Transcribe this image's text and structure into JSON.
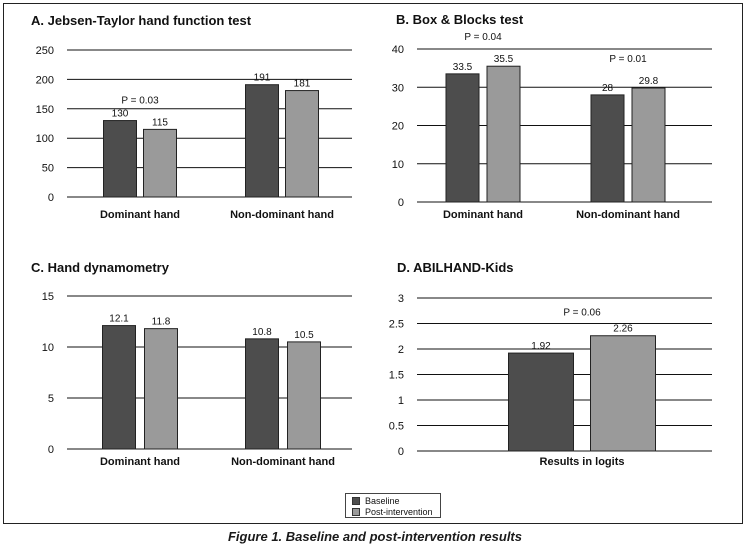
{
  "caption": "Figure 1. Baseline and post-intervention results",
  "legend": [
    {
      "label": "Baseline",
      "color": "#4d4d4d"
    },
    {
      "label": "Post-intervention",
      "color": "#9a9a9a"
    }
  ],
  "colors": {
    "baseline": "#4d4d4d",
    "post": "#9a9a9a"
  },
  "chart_data": [
    {
      "type": "bar",
      "title": "A. Jebsen-Taylor hand function test",
      "categories": [
        "Dominant hand",
        "Non-dominant hand"
      ],
      "series": [
        {
          "name": "Baseline",
          "values": [
            130,
            191
          ]
        },
        {
          "name": "Post-intervention",
          "values": [
            115,
            181
          ]
        }
      ],
      "ylim": [
        0,
        250
      ],
      "yticks": [
        0,
        50,
        100,
        150,
        200,
        250
      ],
      "grid": true,
      "annotations": [
        {
          "text": "P = 0.03",
          "category": 0
        }
      ]
    },
    {
      "type": "bar",
      "title": "B. Box & Blocks test",
      "categories": [
        "Dominant hand",
        "Non-dominant hand"
      ],
      "series": [
        {
          "name": "Baseline",
          "values": [
            33.5,
            28
          ]
        },
        {
          "name": "Post-intervention",
          "values": [
            35.5,
            29.8
          ]
        }
      ],
      "ylim": [
        0,
        40
      ],
      "yticks": [
        0,
        10,
        20,
        30,
        40
      ],
      "grid": true,
      "annotations": [
        {
          "text": "P = 0.04",
          "category": 0
        },
        {
          "text": "P = 0.01",
          "category": 1
        }
      ]
    },
    {
      "type": "bar",
      "title": "C. Hand dynamometry",
      "categories": [
        "Dominant hand",
        "Non-dominant hand"
      ],
      "series": [
        {
          "name": "Baseline",
          "values": [
            12.1,
            10.8
          ]
        },
        {
          "name": "Post-intervention",
          "values": [
            11.8,
            10.5
          ]
        }
      ],
      "ylim": [
        0,
        15
      ],
      "yticks": [
        0,
        5,
        10,
        15
      ],
      "grid": true,
      "annotations": []
    },
    {
      "type": "bar",
      "title": "D. ABILHAND-Kids",
      "categories": [
        "Results in logits"
      ],
      "series": [
        {
          "name": "Baseline",
          "values": [
            1.92
          ]
        },
        {
          "name": "Post-intervention",
          "values": [
            2.26
          ]
        }
      ],
      "ylim": [
        0,
        3
      ],
      "yticks": [
        0,
        0.5,
        1,
        1.5,
        2,
        2.5,
        3
      ],
      "grid": true,
      "annotations": [
        {
          "text": "P = 0.06",
          "category": 0
        }
      ]
    }
  ]
}
